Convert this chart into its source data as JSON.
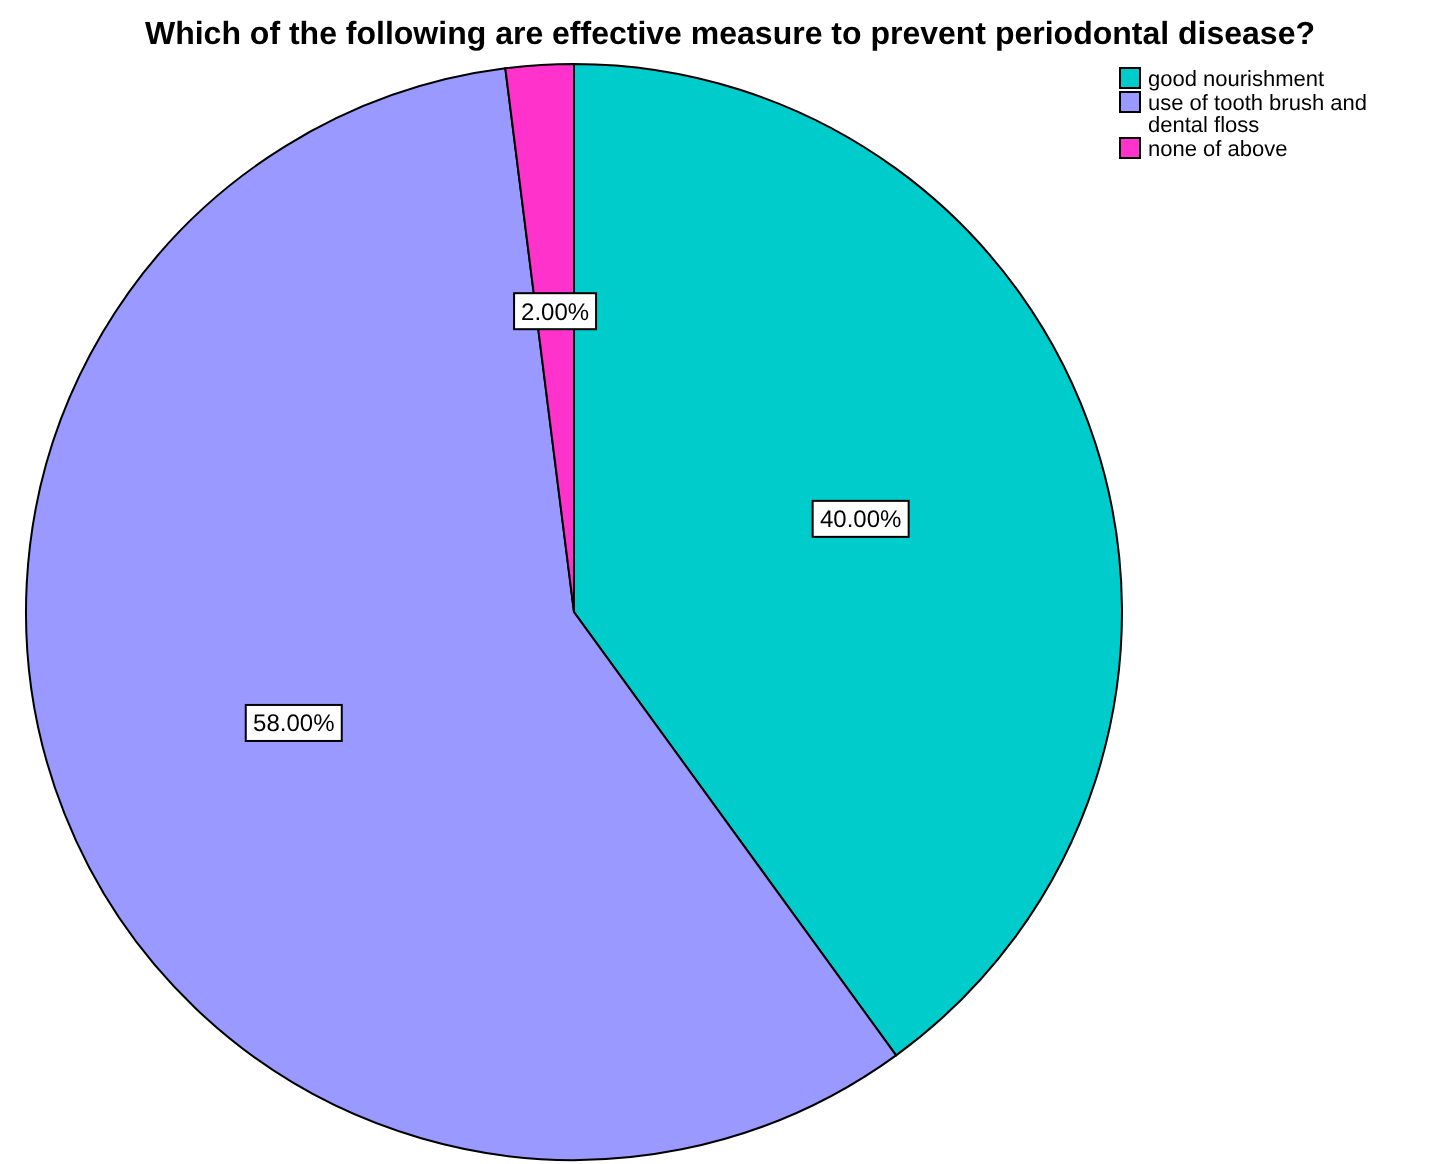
{
  "chart_data": {
    "type": "pie",
    "title": "Which of the following are effective measure to prevent periodontal disease?",
    "categories": [
      "good nourishment",
      "use of tooth brush and dental floss",
      "none of above"
    ],
    "values": [
      40,
      58,
      2
    ],
    "colors": [
      "#00cccc",
      "#9999ff",
      "#ff33cc"
    ],
    "value_labels": [
      "40.00%",
      "58.00%",
      "2.00%"
    ],
    "legend": "top right"
  }
}
